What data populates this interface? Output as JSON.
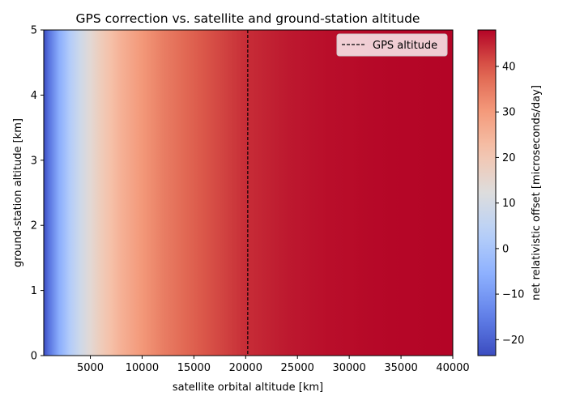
{
  "chart_data": {
    "type": "heatmap",
    "title": "GPS correction vs. satellite and ground-station altitude",
    "xlabel": "satellite orbital altitude [km]",
    "ylabel": "ground-station altitude [km]",
    "colorbar_label": "net relativistic offset [microseconds/day]",
    "colormap": "coolwarm",
    "xlim": [
      500,
      40000
    ],
    "ylim": [
      0,
      5
    ],
    "clim": [
      -23.5,
      48
    ],
    "x_ticks": [
      5000,
      10000,
      15000,
      20000,
      25000,
      30000,
      35000,
      40000
    ],
    "y_ticks": [
      0,
      1,
      2,
      3,
      4,
      5
    ],
    "colorbar_ticks": [
      -20,
      -10,
      0,
      10,
      20,
      30,
      40
    ],
    "grid": false,
    "legend_position": "top-right",
    "series": [
      {
        "name": "GPS altitude",
        "type": "vline",
        "x": 20200,
        "style": "dashed",
        "color": "#000000"
      }
    ],
    "offset_profile": {
      "satellite_altitude_km": [
        500,
        1000,
        2000,
        3000,
        4000,
        5000,
        6000,
        7000,
        8000,
        10000,
        12000,
        14000,
        16000,
        18000,
        20000,
        22000,
        24000,
        26000,
        28000,
        30000,
        32000,
        34000,
        36000,
        38000,
        40000
      ],
      "net_offset_us_per_day": [
        -23.5,
        -17,
        -6,
        2,
        8.5,
        14,
        18.5,
        22,
        25.5,
        30.5,
        34.5,
        37.5,
        40,
        42,
        44,
        45,
        46,
        46.5,
        47,
        47.2,
        47.5,
        47.7,
        47.8,
        47.9,
        48
      ]
    }
  }
}
